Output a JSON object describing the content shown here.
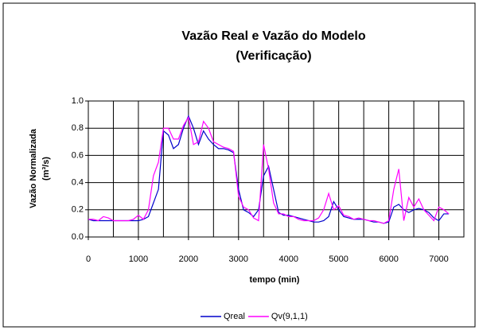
{
  "chart_data": {
    "type": "line",
    "title": "Vazão Real e Vazão do Modelo",
    "subtitle": "(Verificação)",
    "ylabel": "Vazão Normalizada",
    "ylabel_unit": "(m³/s)",
    "xlabel": "tempo (min)",
    "x": [
      0,
      100,
      200,
      300,
      400,
      500,
      600,
      700,
      800,
      900,
      1000,
      1100,
      1200,
      1300,
      1400,
      1500,
      1600,
      1700,
      1800,
      1900,
      2000,
      2100,
      2200,
      2300,
      2400,
      2500,
      2600,
      2700,
      2800,
      2900,
      3000,
      3100,
      3200,
      3300,
      3400,
      3500,
      3600,
      3700,
      3800,
      3900,
      4000,
      4100,
      4200,
      4300,
      4400,
      4500,
      4600,
      4700,
      4800,
      4900,
      5000,
      5100,
      5200,
      5300,
      5400,
      5500,
      5600,
      5700,
      5800,
      5900,
      6000,
      6100,
      6200,
      6300,
      6400,
      6500,
      6600,
      6700,
      6800,
      6900,
      7000,
      7100,
      7200
    ],
    "series": [
      {
        "name": "Qreal",
        "color": "#0000cc",
        "values": [
          0.13,
          0.12,
          0.12,
          0.12,
          0.12,
          0.12,
          0.12,
          0.12,
          0.12,
          0.12,
          0.12,
          0.13,
          0.15,
          0.25,
          0.35,
          0.78,
          0.75,
          0.65,
          0.68,
          0.8,
          0.89,
          0.8,
          0.68,
          0.78,
          0.72,
          0.68,
          0.65,
          0.65,
          0.64,
          0.62,
          0.35,
          0.2,
          0.18,
          0.15,
          0.2,
          0.45,
          0.52,
          0.35,
          0.18,
          0.16,
          0.16,
          0.15,
          0.14,
          0.13,
          0.12,
          0.11,
          0.11,
          0.12,
          0.15,
          0.26,
          0.2,
          0.15,
          0.14,
          0.13,
          0.13,
          0.13,
          0.12,
          0.11,
          0.11,
          0.1,
          0.11,
          0.22,
          0.24,
          0.2,
          0.18,
          0.2,
          0.21,
          0.2,
          0.18,
          0.14,
          0.12,
          0.17,
          0.17
        ]
      },
      {
        "name": "Qv(9,1,1)",
        "color": "#ff00ff",
        "values": [
          0.13,
          0.13,
          0.12,
          0.15,
          0.14,
          0.12,
          0.12,
          0.12,
          0.12,
          0.13,
          0.16,
          0.13,
          0.2,
          0.45,
          0.55,
          0.8,
          0.8,
          0.72,
          0.72,
          0.82,
          0.88,
          0.68,
          0.7,
          0.85,
          0.8,
          0.7,
          0.68,
          0.66,
          0.65,
          0.63,
          0.3,
          0.22,
          0.2,
          0.14,
          0.12,
          0.68,
          0.5,
          0.25,
          0.17,
          0.17,
          0.15,
          0.15,
          0.13,
          0.12,
          0.12,
          0.12,
          0.14,
          0.2,
          0.32,
          0.2,
          0.23,
          0.16,
          0.15,
          0.13,
          0.14,
          0.13,
          0.12,
          0.12,
          0.11,
          0.1,
          0.12,
          0.35,
          0.5,
          0.12,
          0.29,
          0.22,
          0.28,
          0.2,
          0.16,
          0.12,
          0.22,
          0.2,
          0.17
        ]
      }
    ],
    "xlim": [
      0,
      7500
    ],
    "xticks": [
      0,
      1000,
      2000,
      3000,
      4000,
      5000,
      6000,
      7000
    ],
    "xgrid": [
      500,
      1000,
      1500,
      2000,
      2500,
      3000,
      3500,
      4000,
      4500,
      5000,
      5500,
      6000,
      6500,
      7000
    ],
    "ylim": [
      0,
      1
    ],
    "yticks": [
      {
        "value": 0,
        "label": "0.0"
      },
      0.2,
      0.4,
      0.6,
      0.8,
      {
        "value": 1,
        "label": "1.0"
      }
    ],
    "grid": true,
    "legend": "bottom"
  }
}
